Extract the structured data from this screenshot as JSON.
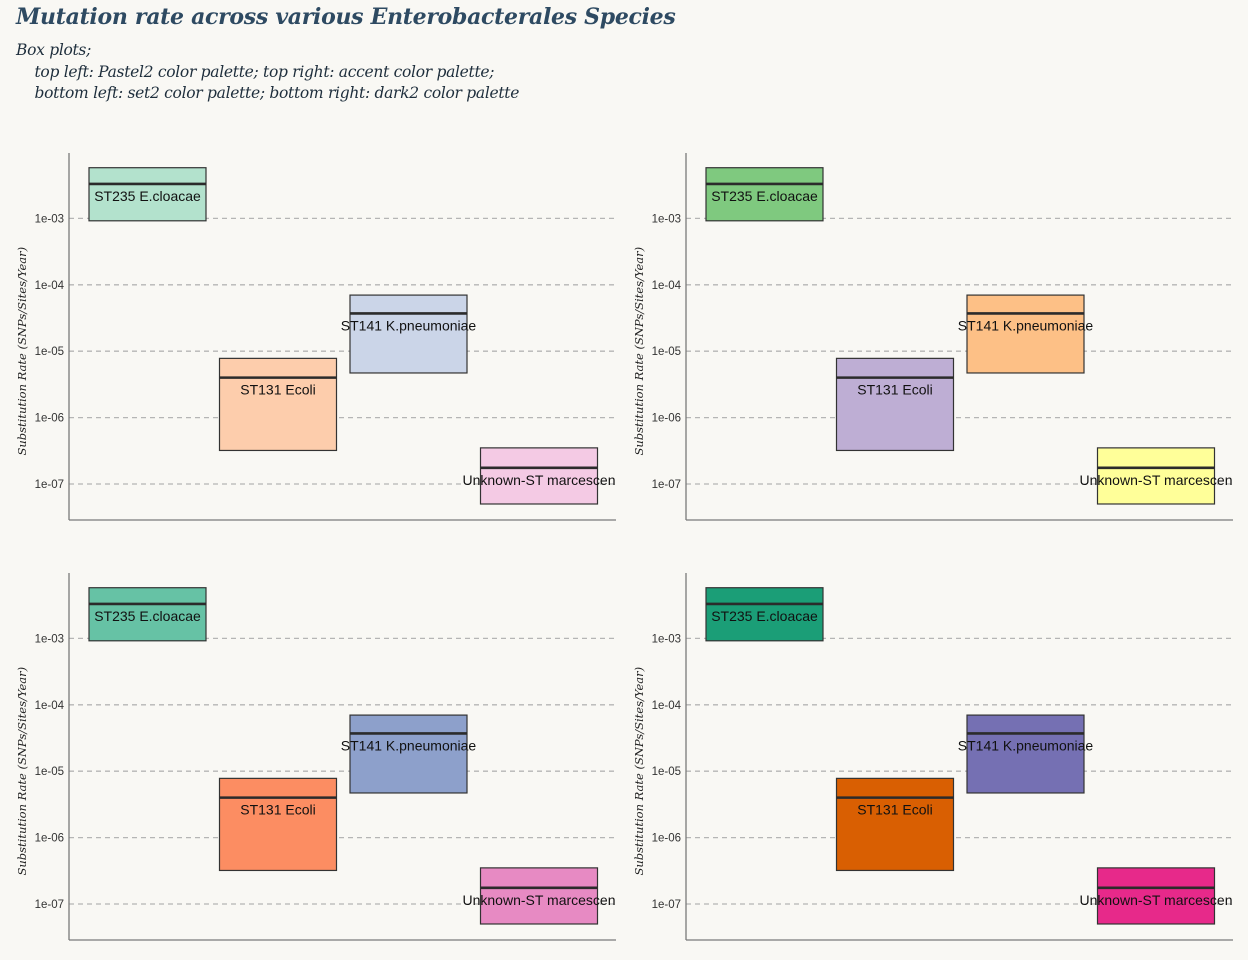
{
  "title": "Mutation rate across various Enterobacterales Species",
  "subtitle": "Box plots;\n    top left: Pastel2 color palette; top right: accent color palette;\n    bottom left: set2 color palette; bottom right: dark2 color palette",
  "chart_data": [
    {
      "type": "box",
      "palette": "Pastel2",
      "ylabel": "Substitution Rate (SNPs/Sites/Year)",
      "yscale": "log",
      "ylim": [
        2.5e-08,
        0.01
      ],
      "yticks": [
        "1e-07",
        "1e-06",
        "1e-05",
        "1e-04",
        "1e-03"
      ],
      "grid": "horizontal-dashed",
      "categories": [
        "ST235 E.cloacae",
        "ST131 Ecoli",
        "ST141 K.pneumoniae",
        "Unknown-ST marcescen"
      ],
      "boxes": [
        {
          "label": "ST235 E.cloacae",
          "q1": 0.00092,
          "median": 0.0033,
          "q3": 0.0058,
          "color": "#b3e2cd"
        },
        {
          "label": "ST131 Ecoli",
          "q1": 3.2e-07,
          "median": 4e-06,
          "q3": 7.8e-06,
          "color": "#fdcdac"
        },
        {
          "label": "ST141 K.pneumoniae",
          "q1": 4.7e-06,
          "median": 3.7e-05,
          "q3": 7e-05,
          "color": "#cbd5e8"
        },
        {
          "label": "Unknown-ST marcescen",
          "q1": 5e-08,
          "median": 1.75e-07,
          "q3": 3.5e-07,
          "color": "#f4cae4"
        }
      ]
    },
    {
      "type": "box",
      "palette": "Accent",
      "ylabel": "Substitution Rate (SNPs/Sites/Year)",
      "yscale": "log",
      "ylim": [
        2.5e-08,
        0.01
      ],
      "yticks": [
        "1e-07",
        "1e-06",
        "1e-05",
        "1e-04",
        "1e-03"
      ],
      "grid": "horizontal-dashed",
      "categories": [
        "ST235 E.cloacae",
        "ST131 Ecoli",
        "ST141 K.pneumoniae",
        "Unknown-ST marcescen"
      ],
      "boxes": [
        {
          "label": "ST235 E.cloacae",
          "q1": 0.00092,
          "median": 0.0033,
          "q3": 0.0058,
          "color": "#7fc97f"
        },
        {
          "label": "ST131 Ecoli",
          "q1": 3.2e-07,
          "median": 4e-06,
          "q3": 7.8e-06,
          "color": "#beaed4"
        },
        {
          "label": "ST141 K.pneumoniae",
          "q1": 4.7e-06,
          "median": 3.7e-05,
          "q3": 7e-05,
          "color": "#fdc086"
        },
        {
          "label": "Unknown-ST marcescen",
          "q1": 5e-08,
          "median": 1.75e-07,
          "q3": 3.5e-07,
          "color": "#ffff99"
        }
      ]
    },
    {
      "type": "box",
      "palette": "Set2",
      "ylabel": "Substitution Rate (SNPs/Sites/Year)",
      "yscale": "log",
      "ylim": [
        2.5e-08,
        0.01
      ],
      "yticks": [
        "1e-07",
        "1e-06",
        "1e-05",
        "1e-04",
        "1e-03"
      ],
      "grid": "horizontal-dashed",
      "categories": [
        "ST235 E.cloacae",
        "ST131 Ecoli",
        "ST141 K.pneumoniae",
        "Unknown-ST marcescen"
      ],
      "boxes": [
        {
          "label": "ST235 E.cloacae",
          "q1": 0.00092,
          "median": 0.0033,
          "q3": 0.0058,
          "color": "#66c2a5"
        },
        {
          "label": "ST131 Ecoli",
          "q1": 3.2e-07,
          "median": 4e-06,
          "q3": 7.8e-06,
          "color": "#fc8d62"
        },
        {
          "label": "ST141 K.pneumoniae",
          "q1": 4.7e-06,
          "median": 3.7e-05,
          "q3": 7e-05,
          "color": "#8da0cb"
        },
        {
          "label": "Unknown-ST marcescen",
          "q1": 5e-08,
          "median": 1.75e-07,
          "q3": 3.5e-07,
          "color": "#e78ac3"
        }
      ]
    },
    {
      "type": "box",
      "palette": "Dark2",
      "ylabel": "Substitution Rate (SNPs/Sites/Year)",
      "yscale": "log",
      "ylim": [
        2.5e-08,
        0.01
      ],
      "yticks": [
        "1e-07",
        "1e-06",
        "1e-05",
        "1e-04",
        "1e-03"
      ],
      "grid": "horizontal-dashed",
      "categories": [
        "ST235 E.cloacae",
        "ST131 Ecoli",
        "ST141 K.pneumoniae",
        "Unknown-ST marcescen"
      ],
      "boxes": [
        {
          "label": "ST235 E.cloacae",
          "q1": 0.00092,
          "median": 0.0033,
          "q3": 0.0058,
          "color": "#1b9e77"
        },
        {
          "label": "ST131 Ecoli",
          "q1": 3.2e-07,
          "median": 4e-06,
          "q3": 7.8e-06,
          "color": "#d95f02"
        },
        {
          "label": "ST141 K.pneumoniae",
          "q1": 4.7e-06,
          "median": 3.7e-05,
          "q3": 7e-05,
          "color": "#7570b3"
        },
        {
          "label": "Unknown-ST marcescen",
          "q1": 5e-08,
          "median": 1.75e-07,
          "q3": 3.5e-07,
          "color": "#e7298a"
        }
      ]
    }
  ]
}
